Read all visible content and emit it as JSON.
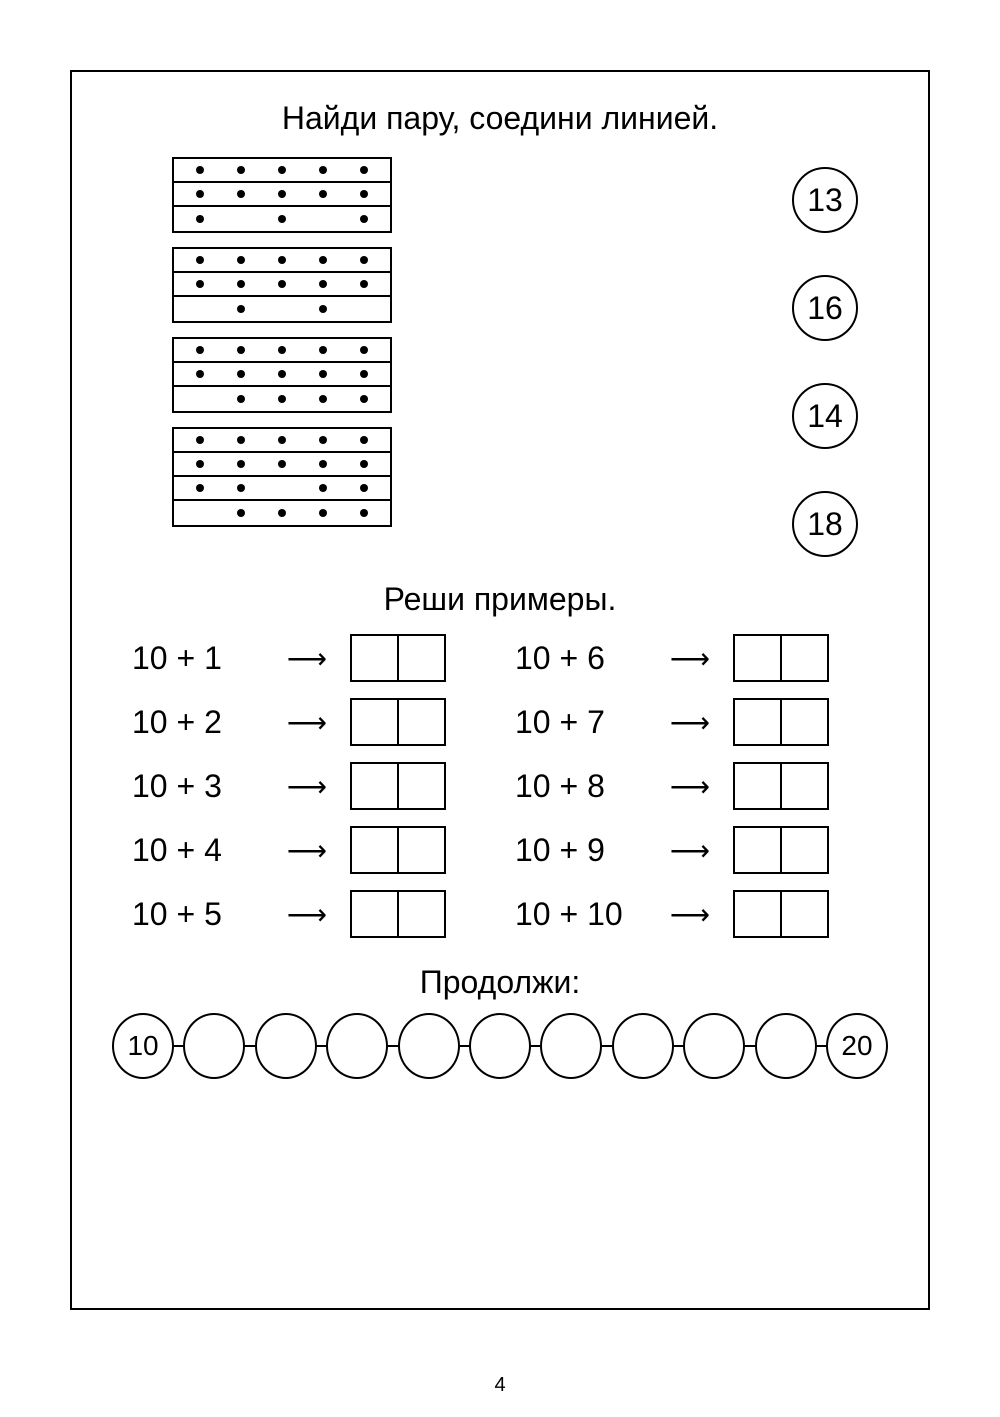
{
  "page_number": "4",
  "section1": {
    "title": "Найди пару, соедини линией.",
    "dot_boxes": [
      {
        "rows": [
          [
            1,
            1,
            1,
            1,
            1
          ],
          [
            1,
            1,
            1,
            1,
            1
          ],
          [
            1,
            0,
            1,
            0,
            1
          ]
        ]
      },
      {
        "rows": [
          [
            1,
            1,
            1,
            1,
            1
          ],
          [
            1,
            1,
            1,
            1,
            1
          ],
          [
            0,
            1,
            0,
            1,
            0
          ]
        ]
      },
      {
        "rows": [
          [
            1,
            1,
            1,
            1,
            1
          ],
          [
            1,
            1,
            1,
            1,
            1
          ],
          [
            0,
            1,
            1,
            1,
            1
          ]
        ]
      },
      {
        "rows": [
          [
            1,
            1,
            1,
            1,
            1
          ],
          [
            1,
            1,
            1,
            1,
            1
          ],
          [
            1,
            1,
            0,
            1,
            1
          ],
          [
            0,
            1,
            1,
            1,
            1
          ]
        ]
      }
    ],
    "circles": [
      "13",
      "16",
      "14",
      "18"
    ]
  },
  "section2": {
    "title": "Реши примеры.",
    "problems_left": [
      "10 + 1",
      "10 + 2",
      "10 + 3",
      "10 + 4",
      "10 + 5"
    ],
    "problems_right": [
      "10 + 6",
      "10 + 7",
      "10 + 8",
      "10 + 9",
      "10 + 10"
    ],
    "arrow": "⟶"
  },
  "section3": {
    "title": "Продолжи:",
    "sequence": [
      "10",
      "",
      "",
      "",
      "",
      "",
      "",
      "",
      "",
      "",
      "20"
    ]
  }
}
